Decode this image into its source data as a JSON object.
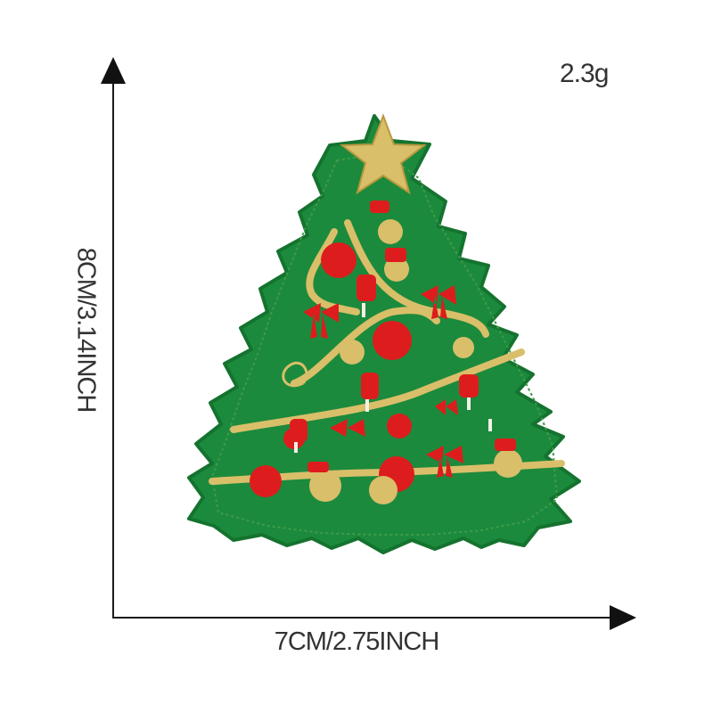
{
  "dimensions": {
    "weight": "2.3g",
    "height": "8CM/3.14INCH",
    "width": "7CM/2.75INCH"
  },
  "colors": {
    "felt_green": "#1c8a3c",
    "felt_edge": "#14732f",
    "gold_thread": "#d9bf6a",
    "red_thread": "#dd1d1d",
    "axis": "#111111"
  },
  "subject": {
    "icon": "christmas-tree-patch-icon"
  }
}
